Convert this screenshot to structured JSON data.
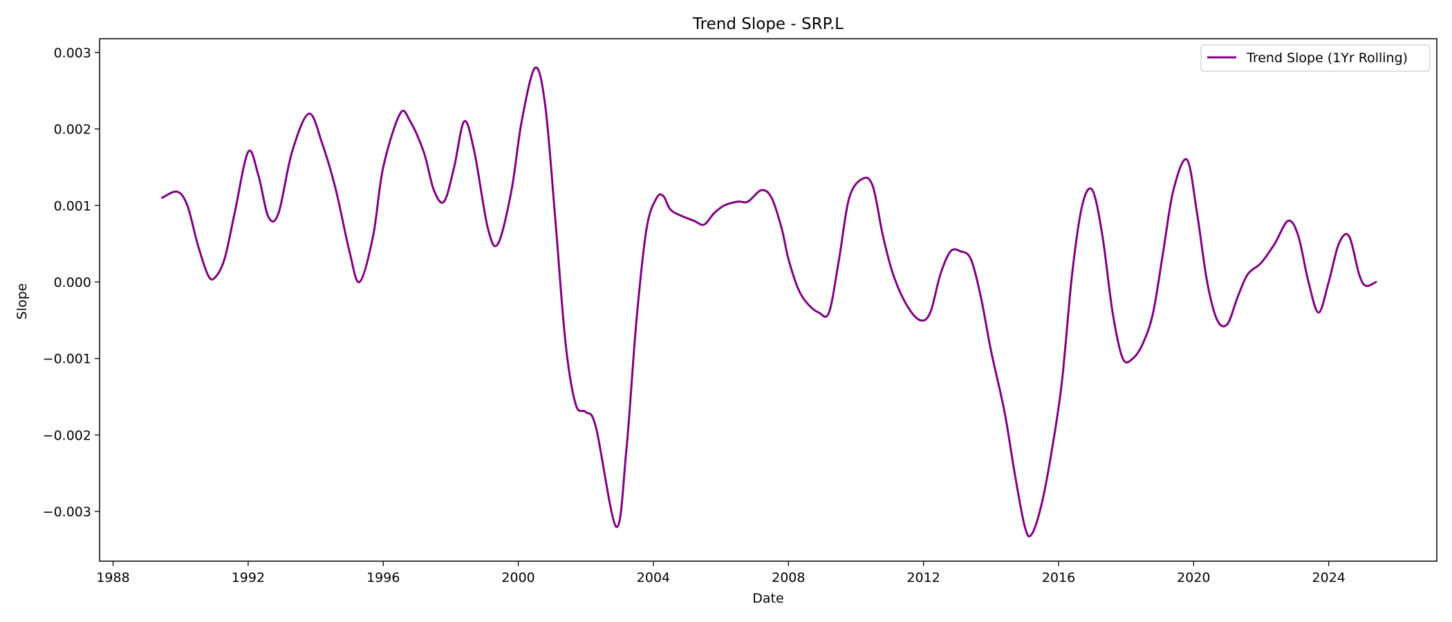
{
  "chart_data": {
    "type": "line",
    "title": "Trend Slope - SRP.L",
    "xlabel": "Date",
    "ylabel": "Slope",
    "xlim": [
      1987.6,
      2027.2
    ],
    "ylim": [
      -0.00365,
      0.00318
    ],
    "x_ticks": [
      1988,
      1992,
      1996,
      2000,
      2004,
      2008,
      2012,
      2016,
      2020,
      2024
    ],
    "y_ticks": [
      -0.003,
      -0.002,
      -0.001,
      0.0,
      0.001,
      0.002,
      0.003
    ],
    "y_tick_labels": [
      "−0.003",
      "−0.002",
      "−0.001",
      "0.000",
      "0.001",
      "0.002",
      "0.003"
    ],
    "grid": false,
    "legend_position": "top-right",
    "series": [
      {
        "name": "Trend Slope (1Yr Rolling)",
        "color": "#800080",
        "x": [
          1989.45,
          1989.9,
          1990.2,
          1990.5,
          1990.8,
          1991.0,
          1991.3,
          1991.6,
          1992.0,
          1992.3,
          1992.6,
          1992.9,
          1993.3,
          1993.8,
          1994.2,
          1994.6,
          1995.0,
          1995.3,
          1995.7,
          1996.0,
          1996.5,
          1996.8,
          1997.2,
          1997.5,
          1997.8,
          1998.1,
          1998.4,
          1998.7,
          1999.1,
          1999.4,
          1999.8,
          2000.1,
          2000.5,
          2000.8,
          2001.1,
          2001.4,
          2001.7,
          2002.0,
          2002.3,
          2002.9,
          2003.2,
          2003.5,
          2003.8,
          2004.1,
          2004.3,
          2004.5,
          2004.8,
          2005.2,
          2005.5,
          2005.8,
          2006.1,
          2006.5,
          2006.8,
          2007.2,
          2007.5,
          2007.8,
          2008.0,
          2008.3,
          2008.6,
          2008.9,
          2009.2,
          2009.5,
          2009.8,
          2010.2,
          2010.5,
          2010.8,
          2011.1,
          2011.5,
          2011.9,
          2012.2,
          2012.5,
          2012.8,
          2013.1,
          2013.4,
          2013.7,
          2014.0,
          2014.4,
          2014.7,
          2015.0,
          2015.2,
          2015.5,
          2015.8,
          2016.1,
          2016.4,
          2016.7,
          2017.0,
          2017.3,
          2017.6,
          2017.9,
          2018.2,
          2018.5,
          2018.8,
          2019.1,
          2019.4,
          2019.8,
          2020.1,
          2020.4,
          2020.7,
          2021.0,
          2021.3,
          2021.6,
          2022.0,
          2022.4,
          2022.8,
          2023.1,
          2023.4,
          2023.7,
          2024.0,
          2024.3,
          2024.6,
          2024.9,
          2025.1,
          2025.4
        ],
        "y": [
          0.0011,
          0.00118,
          0.001,
          0.0005,
          0.0001,
          5e-05,
          0.0003,
          0.0009,
          0.0017,
          0.0014,
          0.00085,
          0.0009,
          0.0017,
          0.0022,
          0.0018,
          0.0012,
          0.0004,
          0.0,
          0.0006,
          0.0015,
          0.0022,
          0.0021,
          0.0017,
          0.0012,
          0.00105,
          0.0015,
          0.0021,
          0.0017,
          0.0007,
          0.0005,
          0.0012,
          0.0021,
          0.0028,
          0.0023,
          0.0008,
          -0.0008,
          -0.0016,
          -0.0017,
          -0.0019,
          -0.0032,
          -0.0022,
          -0.0005,
          0.0007,
          0.0011,
          0.00112,
          0.00095,
          0.00087,
          0.0008,
          0.00075,
          0.0009,
          0.001,
          0.00105,
          0.00105,
          0.0012,
          0.0011,
          0.0007,
          0.0003,
          -0.0001,
          -0.0003,
          -0.0004,
          -0.0004,
          0.0003,
          0.0011,
          0.00135,
          0.00125,
          0.0006,
          0.0001,
          -0.0003,
          -0.0005,
          -0.0004,
          0.0001,
          0.0004,
          0.0004,
          0.0003,
          -0.0002,
          -0.0009,
          -0.0017,
          -0.0025,
          -0.0032,
          -0.0033,
          -0.0029,
          -0.0022,
          -0.0013,
          0.0001,
          0.001,
          0.0012,
          0.0006,
          -0.0004,
          -0.001,
          -0.001,
          -0.0008,
          -0.0004,
          0.0004,
          0.0012,
          0.0016,
          0.0009,
          0.0,
          -0.0005,
          -0.00055,
          -0.0002,
          0.0001,
          0.00025,
          0.0005,
          0.0008,
          0.0006,
          0.0,
          -0.0004,
          0.0,
          0.0005,
          0.0006,
          0.0001,
          -5e-05,
          0.0
        ]
      }
    ]
  }
}
